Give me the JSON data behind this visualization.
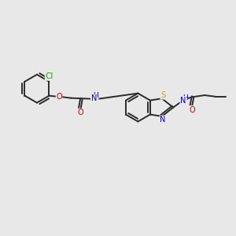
{
  "bg_color": "#e8e8e8",
  "bond_color": "#2a2a2a",
  "bond_width": 1.4,
  "figsize": [
    3.0,
    3.0
  ],
  "dpi": 100,
  "atom_colors": {
    "C": "#2a2a2a",
    "N": "#0000cc",
    "O": "#cc0000",
    "S": "#ccaa00",
    "Cl": "#00bb00",
    "H": "#2a2a2a"
  },
  "font_size": 7.0,
  "xlim": [
    0,
    10
  ],
  "ylim": [
    0,
    10
  ]
}
